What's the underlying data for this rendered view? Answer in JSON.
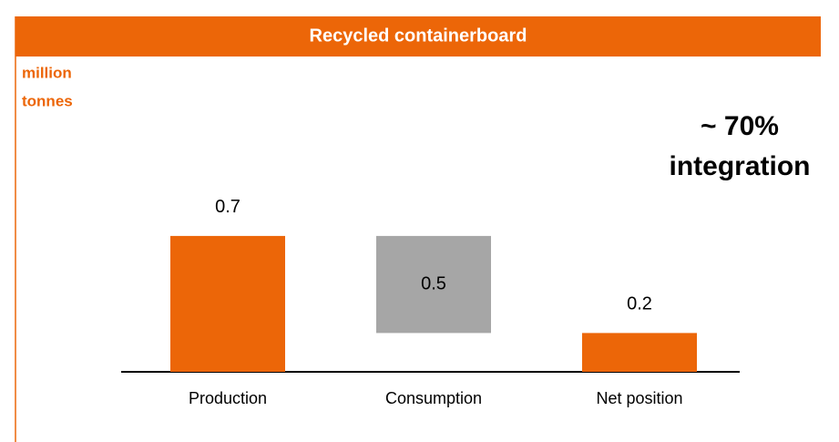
{
  "chart_data": {
    "type": "waterfall",
    "title": "Recycled containerboard",
    "unit_label": [
      "million",
      "tonnes"
    ],
    "annotation": [
      "~ 70%",
      "integration"
    ],
    "categories": [
      "Production",
      "Consumption",
      "Net position"
    ],
    "values": [
      0.7,
      0.5,
      0.2
    ],
    "colors": [
      "#ec6608",
      "#a6a6a6",
      "#ec6608"
    ]
  }
}
